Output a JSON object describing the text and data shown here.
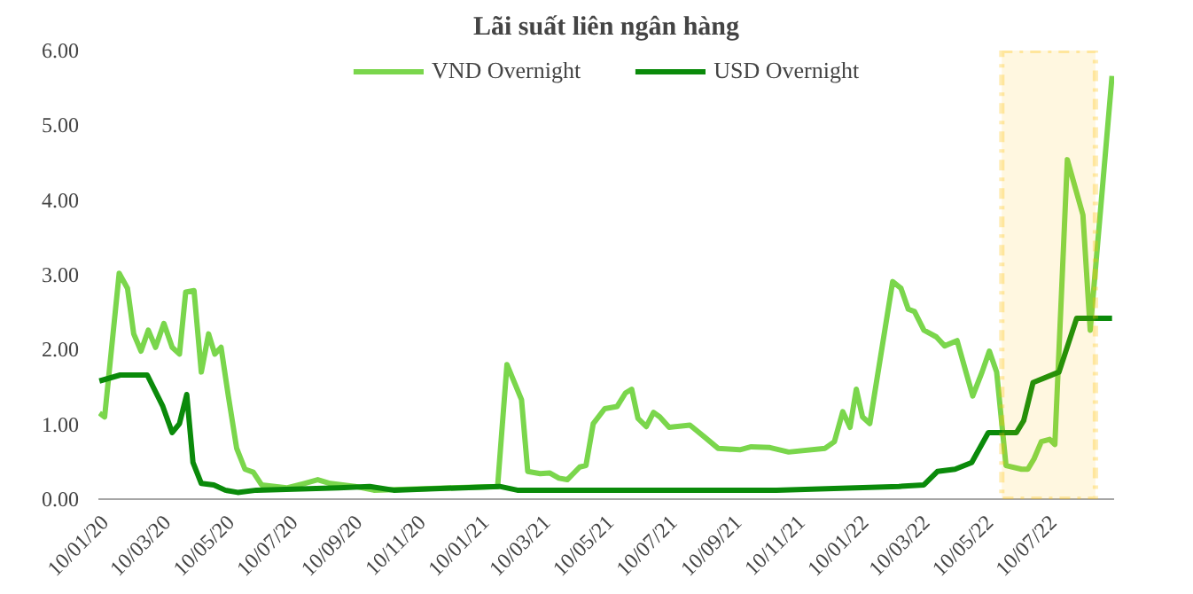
{
  "chart_data": {
    "type": "line",
    "title": "Lãi suất liên ngân hàng",
    "xlim": [
      "2020-01-04",
      "2022-09-07"
    ],
    "xticks": [
      {
        "value": "2020-01-10",
        "label": "10/01/20"
      },
      {
        "value": "2020-03-10",
        "label": "10/03/20"
      },
      {
        "value": "2020-05-10",
        "label": "10/05/20"
      },
      {
        "value": "2020-07-10",
        "label": "10/07/20"
      },
      {
        "value": "2020-09-10",
        "label": "10/09/20"
      },
      {
        "value": "2020-11-10",
        "label": "10/11/20"
      },
      {
        "value": "2021-01-10",
        "label": "10/01/21"
      },
      {
        "value": "2021-03-10",
        "label": "10/03/21"
      },
      {
        "value": "2021-05-10",
        "label": "10/05/21"
      },
      {
        "value": "2021-07-10",
        "label": "10/07/21"
      },
      {
        "value": "2021-09-10",
        "label": "10/09/21"
      },
      {
        "value": "2021-11-10",
        "label": "10/11/21"
      },
      {
        "value": "2022-01-10",
        "label": "10/01/22"
      },
      {
        "value": "2022-03-10",
        "label": "10/03/22"
      },
      {
        "value": "2022-05-10",
        "label": "10/05/22"
      },
      {
        "value": "2022-07-10",
        "label": "10/07/22"
      }
    ],
    "ylim": [
      0,
      6
    ],
    "yticks": [
      {
        "value": 0,
        "label": "0.00"
      },
      {
        "value": 1,
        "label": "1.00"
      },
      {
        "value": 2,
        "label": "2.00"
      },
      {
        "value": 3,
        "label": "3.00"
      },
      {
        "value": 4,
        "label": "4.00"
      },
      {
        "value": 5,
        "label": "5.00"
      },
      {
        "value": 6,
        "label": "6.00"
      }
    ],
    "grid": false,
    "legend": "top",
    "marker": "none",
    "line_style": "solid",
    "bands": [
      {
        "axis": "x",
        "from": "2022-05-22",
        "to": "2022-08-20",
        "label": null,
        "color": "#ffc000"
      }
    ],
    "series": [
      {
        "name": "VND Overnight",
        "color": "#7ad64c",
        "x": [
          "2020-01-05",
          "2020-01-10",
          "2020-01-24",
          "2020-02-01",
          "2020-02-07",
          "2020-02-14",
          "2020-02-21",
          "2020-02-28",
          "2020-03-07",
          "2020-03-15",
          "2020-03-22",
          "2020-03-28",
          "2020-04-05",
          "2020-04-12",
          "2020-04-19",
          "2020-04-25",
          "2020-05-01",
          "2020-05-08",
          "2020-05-16",
          "2020-05-24",
          "2020-06-01",
          "2020-06-09",
          "2020-07-03",
          "2020-07-20",
          "2020-08-02",
          "2020-08-14",
          "2020-09-07",
          "2020-09-25",
          "2021-01-22",
          "2021-01-31",
          "2021-02-14",
          "2021-02-20",
          "2021-03-04",
          "2021-03-13",
          "2021-03-22",
          "2021-03-30",
          "2021-04-11",
          "2021-04-17",
          "2021-04-24",
          "2021-05-05",
          "2021-05-17",
          "2021-05-25",
          "2021-05-31",
          "2021-06-06",
          "2021-06-14",
          "2021-06-21",
          "2021-06-27",
          "2021-07-06",
          "2021-07-26",
          "2021-08-10",
          "2021-08-22",
          "2021-09-12",
          "2021-09-23",
          "2021-10-11",
          "2021-10-29",
          "2021-12-03",
          "2021-12-12",
          "2021-12-20",
          "2021-12-27",
          "2022-01-02",
          "2022-01-08",
          "2022-01-15",
          "2022-02-06",
          "2022-02-14",
          "2022-02-21",
          "2022-02-27",
          "2022-03-08",
          "2022-03-20",
          "2022-03-28",
          "2022-04-09",
          "2022-04-24",
          "2022-05-03",
          "2022-05-10",
          "2022-05-17",
          "2022-05-26",
          "2022-06-10",
          "2022-06-16",
          "2022-06-22",
          "2022-06-29",
          "2022-07-07",
          "2022-07-12",
          "2022-07-24",
          "2022-08-08",
          "2022-08-15",
          "2022-09-05"
        ],
        "values": [
          1.15,
          1.1,
          3.02,
          2.82,
          2.21,
          1.98,
          2.26,
          2.03,
          2.35,
          2.03,
          1.94,
          2.77,
          2.79,
          1.7,
          2.21,
          1.94,
          2.03,
          1.38,
          0.68,
          0.4,
          0.36,
          0.19,
          0.15,
          0.21,
          0.26,
          0.21,
          0.17,
          0.12,
          0.17,
          1.8,
          1.33,
          0.37,
          0.34,
          0.35,
          0.28,
          0.26,
          0.43,
          0.45,
          1.01,
          1.21,
          1.24,
          1.42,
          1.47,
          1.08,
          0.97,
          1.16,
          1.1,
          0.96,
          0.99,
          0.82,
          0.68,
          0.66,
          0.7,
          0.69,
          0.63,
          0.68,
          0.77,
          1.17,
          0.96,
          1.47,
          1.1,
          1.01,
          2.91,
          2.82,
          2.54,
          2.51,
          2.26,
          2.17,
          2.05,
          2.12,
          1.38,
          1.7,
          1.98,
          1.7,
          0.45,
          0.4,
          0.4,
          0.54,
          0.77,
          0.8,
          0.73,
          4.54,
          3.8,
          2.26,
          5.66
        ]
      },
      {
        "name": "USD Overnight",
        "color": "#0a8a0a",
        "x": [
          "2020-01-05",
          "2020-01-25",
          "2020-02-20",
          "2020-03-06",
          "2020-03-15",
          "2020-03-22",
          "2020-03-29",
          "2020-04-04",
          "2020-04-12",
          "2020-04-24",
          "2020-05-05",
          "2020-05-17",
          "2020-06-04",
          "2020-08-22",
          "2020-09-21",
          "2020-10-14",
          "2021-01-24",
          "2021-02-10",
          "2021-10-17",
          "2022-02-12",
          "2022-03-08",
          "2022-03-21",
          "2022-04-07",
          "2022-04-23",
          "2022-05-09",
          "2022-05-17",
          "2022-06-05",
          "2022-06-12",
          "2022-06-21",
          "2022-07-16",
          "2022-08-02",
          "2022-09-05"
        ],
        "values": [
          1.58,
          1.66,
          1.66,
          1.24,
          0.89,
          1.01,
          1.4,
          0.49,
          0.21,
          0.19,
          0.12,
          0.09,
          0.12,
          0.15,
          0.17,
          0.12,
          0.17,
          0.12,
          0.12,
          0.17,
          0.19,
          0.37,
          0.4,
          0.49,
          0.89,
          0.89,
          0.89,
          1.05,
          1.56,
          1.7,
          2.42,
          2.42
        ]
      }
    ]
  }
}
